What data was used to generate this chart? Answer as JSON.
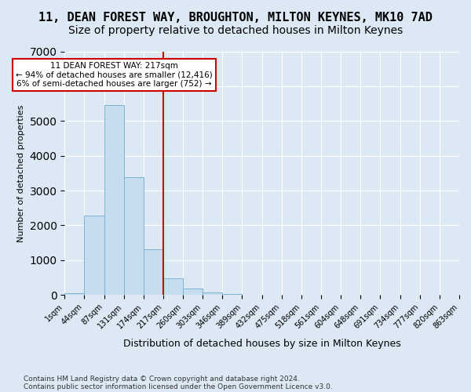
{
  "title": "11, DEAN FOREST WAY, BROUGHTON, MILTON KEYNES, MK10 7AD",
  "subtitle": "Size of property relative to detached houses in Milton Keynes",
  "xlabel": "Distribution of detached houses by size in Milton Keynes",
  "ylabel": "Number of detached properties",
  "footer_line1": "Contains HM Land Registry data © Crown copyright and database right 2024.",
  "footer_line2": "Contains public sector information licensed under the Open Government Licence v3.0.",
  "bin_labels": [
    "1sqm",
    "44sqm",
    "87sqm",
    "131sqm",
    "174sqm",
    "217sqm",
    "260sqm",
    "303sqm",
    "346sqm",
    "389sqm",
    "432sqm",
    "475sqm",
    "518sqm",
    "561sqm",
    "604sqm",
    "648sqm",
    "691sqm",
    "734sqm",
    "777sqm",
    "820sqm",
    "863sqm"
  ],
  "bar_values": [
    50,
    2280,
    5450,
    3380,
    1300,
    480,
    175,
    70,
    20,
    0,
    0,
    0,
    0,
    0,
    0,
    0,
    0,
    0,
    0,
    0
  ],
  "bar_color": "#c6dcef",
  "bar_edge_color": "#7fb3d3",
  "vline_bin_index": 5,
  "vline_color": "#cc0000",
  "annotation_text": "11 DEAN FOREST WAY: 217sqm\n← 94% of detached houses are smaller (12,416)\n6% of semi-detached houses are larger (752) →",
  "annotation_box_color": "#ffffff",
  "annotation_box_edge": "#cc0000",
  "ylim": [
    0,
    7000
  ],
  "yticks": [
    0,
    1000,
    2000,
    3000,
    4000,
    5000,
    6000,
    7000
  ],
  "background_color": "#dce9f5",
  "axes_background": "#dce9f5",
  "grid_color": "#ffffff",
  "title_fontsize": 11,
  "subtitle_fontsize": 10
}
